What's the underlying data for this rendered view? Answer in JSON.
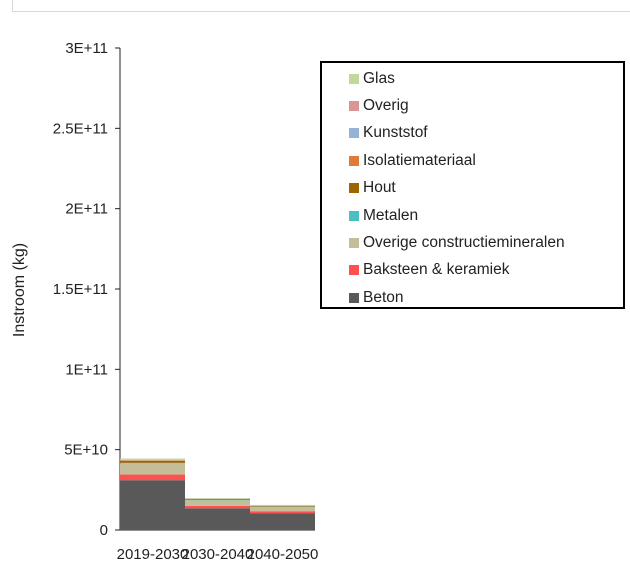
{
  "chart_data": {
    "type": "bar",
    "stacked": true,
    "title": "",
    "xlabel": "",
    "ylabel": "Instroom (kg)",
    "ylim": [
      0,
      300000000000
    ],
    "yticks": [
      0,
      50000000000,
      100000000000,
      150000000000,
      200000000000,
      250000000000,
      300000000000
    ],
    "ytick_labels": [
      "0",
      "5E+10",
      "1E+11",
      "1.5E+11",
      "2E+11",
      "2.5E+11",
      "3E+11"
    ],
    "categories": [
      "2019-2030",
      "2030-2040",
      "2040-2050"
    ],
    "legend_position": "top-right",
    "grid": false,
    "series": [
      {
        "name": "Beton",
        "color": "#595959",
        "values": [
          31000000000,
          13500000000,
          10500000000
        ]
      },
      {
        "name": "Baksteen & keramiek",
        "color": "#ff5050",
        "values": [
          3500000000,
          1500000000,
          1200000000
        ]
      },
      {
        "name": "Overige constructiemineralen",
        "color": "#c4bd97",
        "values": [
          7000000000,
          3500000000,
          2800000000
        ]
      },
      {
        "name": "Metalen",
        "color": "#4bc0c0",
        "values": [
          300000000,
          150000000,
          120000000
        ]
      },
      {
        "name": "Hout",
        "color": "#9c6500",
        "values": [
          1200000000,
          500000000,
          400000000
        ]
      },
      {
        "name": "Isolatiemateriaal",
        "color": "#e07b39",
        "values": [
          300000000,
          150000000,
          120000000
        ]
      },
      {
        "name": "Kunststof",
        "color": "#95b3d7",
        "values": [
          200000000,
          100000000,
          80000000
        ]
      },
      {
        "name": "Overig",
        "color": "#d99694",
        "values": [
          200000000,
          100000000,
          80000000
        ]
      },
      {
        "name": "Glas",
        "color": "#c3d69b",
        "values": [
          800000000,
          400000000,
          300000000
        ]
      }
    ]
  }
}
